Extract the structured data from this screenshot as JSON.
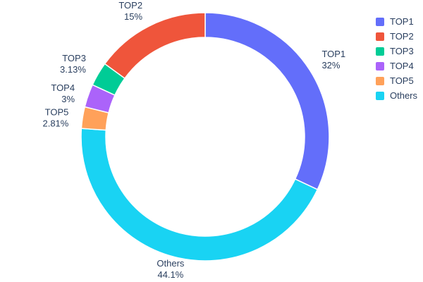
{
  "chart_data": {
    "type": "pie",
    "subtype": "donut",
    "title": "",
    "labels": [
      "TOP1",
      "TOP2",
      "TOP3",
      "TOP4",
      "TOP5",
      "Others"
    ],
    "values": [
      32,
      15,
      3.13,
      3,
      2.81,
      44.1
    ],
    "display_percents": [
      "32%",
      "15%",
      "3.13%",
      "3%",
      "2.81%",
      "44.1%"
    ],
    "colors": [
      "#636EFA",
      "#EF553B",
      "#00CC96",
      "#AB63FA",
      "#FFA15A",
      "#19D3F3"
    ],
    "hole": 0.8,
    "start_angle_deg": 0,
    "direction": "clockwise",
    "slice_order_clockwise_from_top": [
      "TOP1",
      "Others",
      "TOP5",
      "TOP4",
      "TOP3",
      "TOP2"
    ],
    "legend_position": "right",
    "label_position": "outside",
    "label_color": "#2a3f5f",
    "slice_border_color": "#ffffff"
  }
}
